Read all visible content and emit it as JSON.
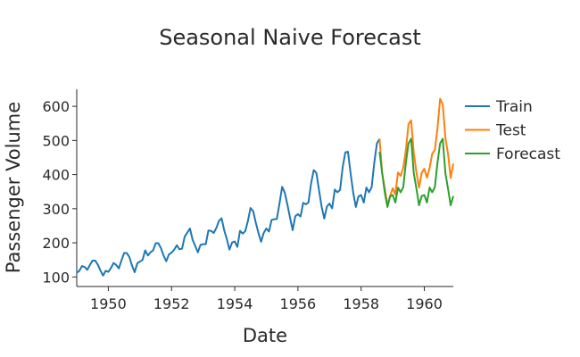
{
  "chart_data": {
    "type": "line",
    "title": "Seasonal Naive Forecast",
    "xlabel": "Date",
    "ylabel": "Passenger Volume",
    "x_tick_labels": [
      "1950",
      "1952",
      "1954",
      "1956",
      "1958",
      "1960"
    ],
    "y_tick_labels": [
      "100",
      "200",
      "300",
      "400",
      "500",
      "600"
    ],
    "xlim": [
      1949.0,
      1960.917
    ],
    "ylim": [
      72,
      650
    ],
    "grid": false,
    "legend_position": "top-right",
    "series": [
      {
        "name": "Train",
        "color": "#1f77b4",
        "start_year": 1949,
        "start_month": 1,
        "values": [
          112,
          118,
          132,
          129,
          121,
          135,
          148,
          148,
          136,
          119,
          104,
          118,
          115,
          126,
          141,
          135,
          125,
          149,
          170,
          170,
          158,
          133,
          114,
          140,
          145,
          150,
          178,
          163,
          172,
          178,
          199,
          199,
          184,
          162,
          146,
          166,
          171,
          180,
          193,
          181,
          183,
          218,
          230,
          242,
          209,
          191,
          172,
          194,
          196,
          196,
          236,
          235,
          229,
          243,
          264,
          272,
          237,
          211,
          180,
          201,
          204,
          188,
          235,
          227,
          234,
          264,
          302,
          293,
          259,
          229,
          203,
          229,
          242,
          233,
          267,
          269,
          270,
          315,
          364,
          347,
          312,
          274,
          237,
          278,
          284,
          277,
          317,
          313,
          318,
          374,
          413,
          405,
          355,
          306,
          271,
          306,
          315,
          301,
          356,
          348,
          355,
          422,
          465,
          467,
          404,
          347,
          305,
          336,
          340,
          318,
          362,
          348,
          363,
          435,
          491,
          505
        ]
      },
      {
        "name": "Test",
        "color": "#ff7f0e",
        "start_year": 1958,
        "start_month": 8,
        "values": [
          505,
          404,
          359,
          310,
          337,
          360,
          342,
          406,
          396,
          420,
          472,
          548,
          559,
          463,
          407,
          362,
          405,
          417,
          391,
          419,
          461,
          472,
          535,
          622,
          606,
          508,
          461,
          390,
          432
        ]
      },
      {
        "name": "Forecast",
        "color": "#2ca02c",
        "start_year": 1958,
        "start_month": 8,
        "values": [
          467,
          404,
          347,
          305,
          336,
          340,
          318,
          362,
          348,
          363,
          435,
          491,
          505,
          404,
          359,
          310,
          337,
          340,
          318,
          362,
          348,
          363,
          435,
          491,
          505,
          404,
          359,
          310,
          337
        ]
      }
    ]
  }
}
